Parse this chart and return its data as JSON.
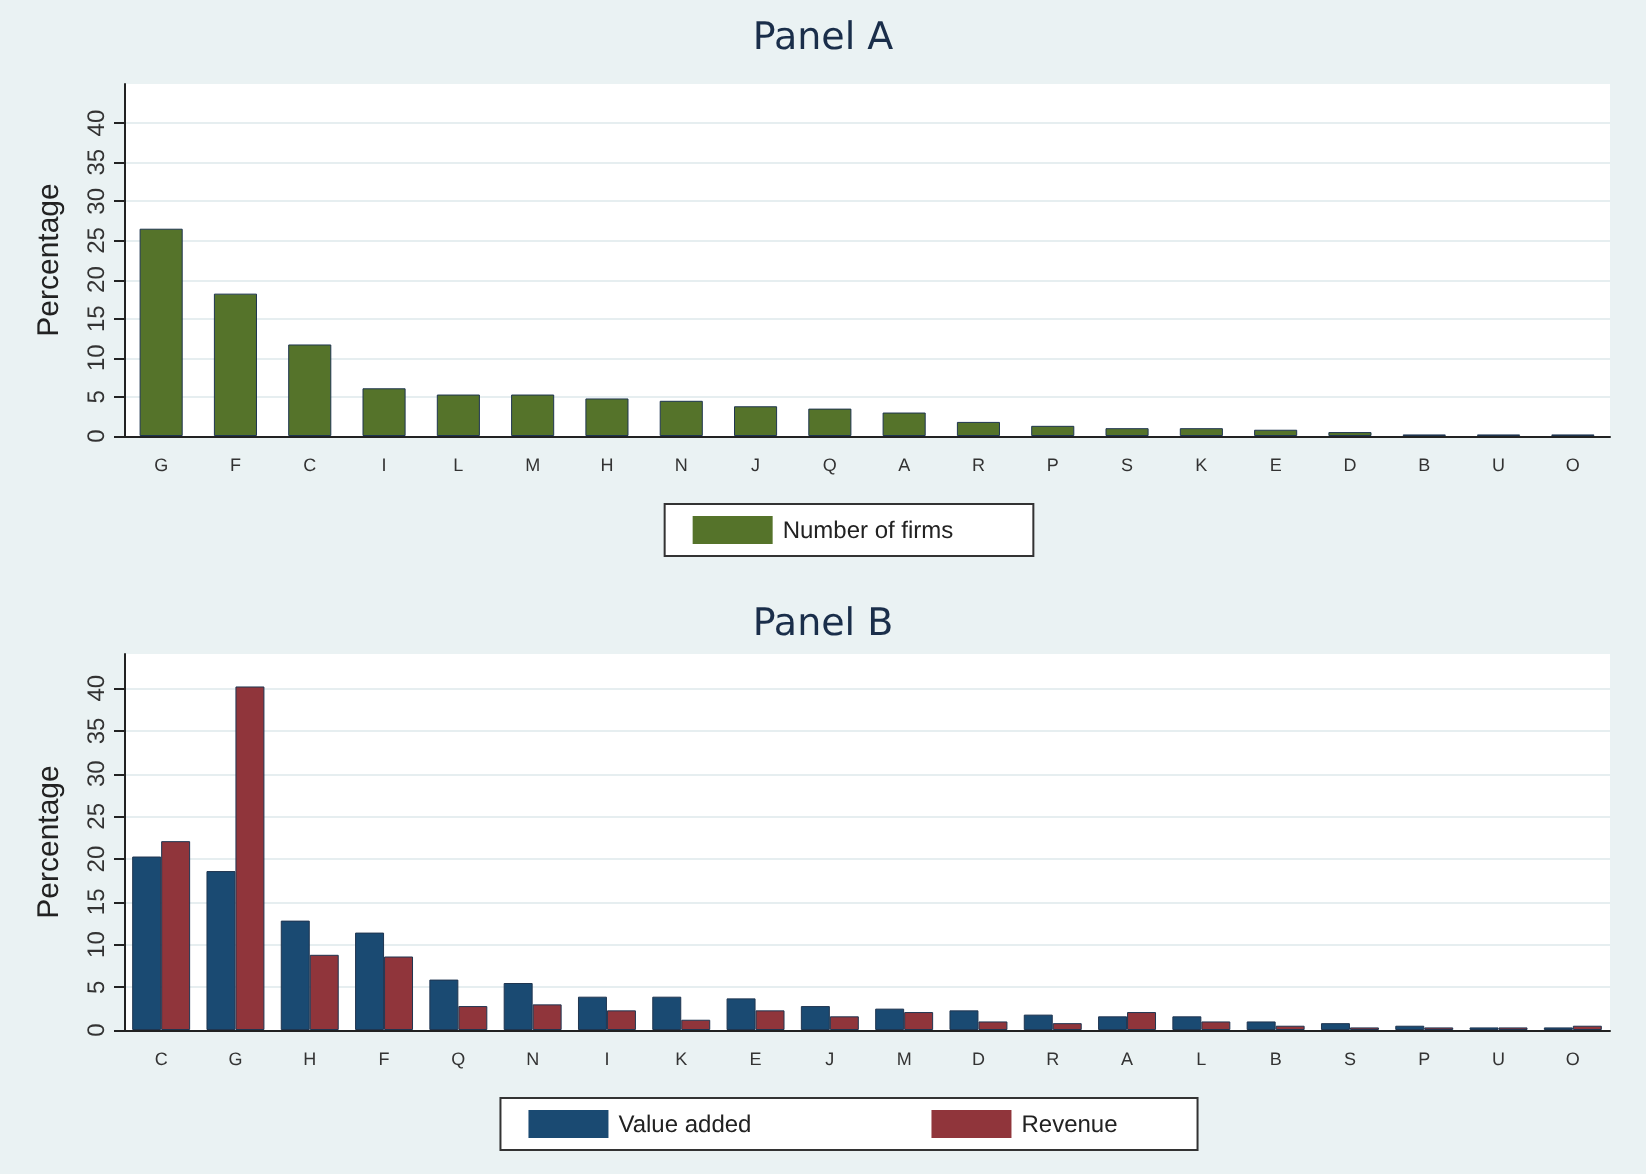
{
  "chart_data": [
    {
      "type": "bar",
      "title": "Panel A",
      "ylabel": "Percentage",
      "categories": [
        "G",
        "F",
        "C",
        "I",
        "L",
        "M",
        "H",
        "N",
        "J",
        "Q",
        "A",
        "R",
        "P",
        "S",
        "K",
        "E",
        "D",
        "B",
        "U",
        "O"
      ],
      "series": [
        {
          "name": "Number of firms",
          "color": "#55732a",
          "values": [
            26.5,
            18.2,
            11.7,
            6.1,
            5.3,
            5.3,
            4.8,
            4.5,
            3.8,
            3.5,
            3.0,
            1.8,
            1.3,
            1.0,
            1.0,
            0.8,
            0.5,
            0.2,
            0.2,
            0.2
          ]
        }
      ],
      "ylim": [
        0,
        45
      ],
      "yticks": [
        0,
        5,
        10,
        15,
        20,
        25,
        30,
        35,
        40
      ],
      "grid": "y",
      "legend": "bottom"
    },
    {
      "type": "bar",
      "title": "Panel B",
      "ylabel": "Percentage",
      "categories": [
        "C",
        "G",
        "H",
        "F",
        "Q",
        "N",
        "I",
        "K",
        "E",
        "J",
        "M",
        "D",
        "R",
        "A",
        "L",
        "B",
        "S",
        "P",
        "U",
        "O"
      ],
      "series": [
        {
          "name": "Value added",
          "color": "#1a4a72",
          "values": [
            20.3,
            18.6,
            12.8,
            11.4,
            5.9,
            5.5,
            3.9,
            3.9,
            3.7,
            2.8,
            2.5,
            2.3,
            1.8,
            1.6,
            1.6,
            1.0,
            0.8,
            0.5,
            0.3,
            0.3
          ]
        },
        {
          "name": "Revenue",
          "color": "#90353b",
          "values": [
            22.1,
            40.2,
            8.8,
            8.6,
            2.8,
            3.0,
            2.3,
            1.2,
            2.3,
            1.6,
            2.1,
            1.0,
            0.8,
            2.1,
            1.0,
            0.5,
            0.3,
            0.3,
            0.3,
            0.5
          ]
        }
      ],
      "ylim": [
        0,
        44
      ],
      "yticks": [
        0,
        5,
        10,
        15,
        20,
        25,
        30,
        35,
        40
      ],
      "grid": "y",
      "legend": "bottom"
    }
  ]
}
